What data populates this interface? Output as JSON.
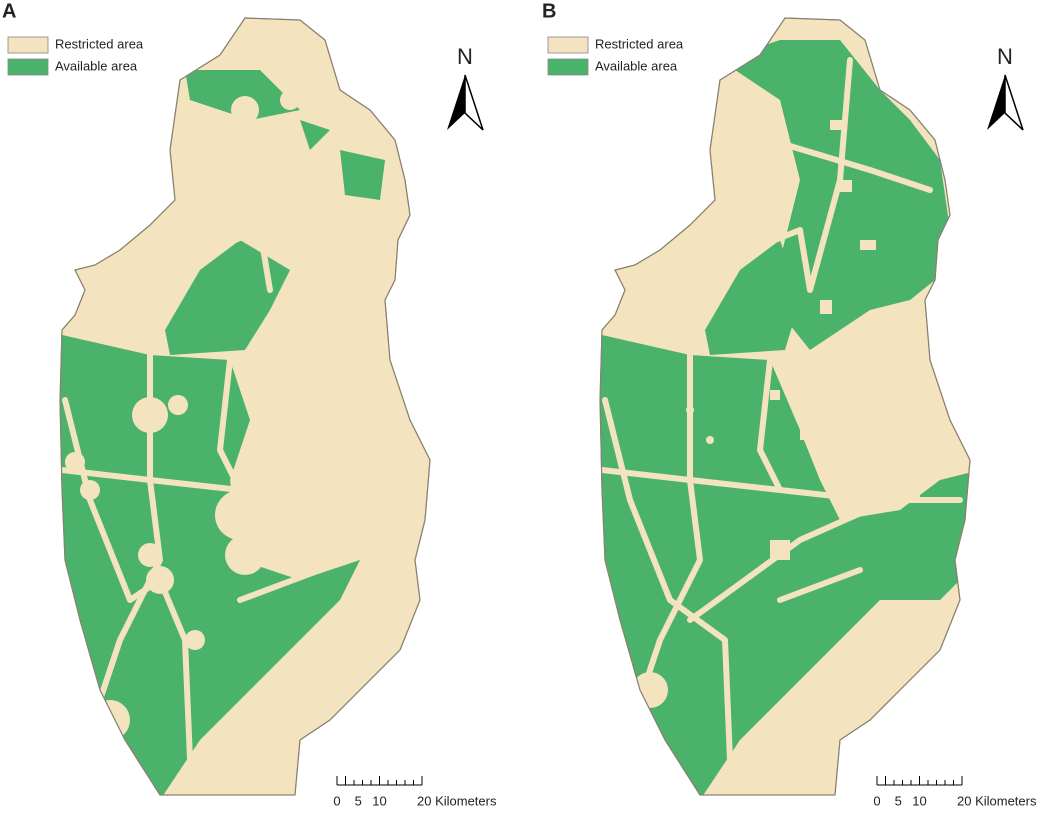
{
  "panels": [
    {
      "label": "A",
      "legend": [
        {
          "label": "Restricted area",
          "color": "#f3e3bf"
        },
        {
          "label": "Available area",
          "color": "#4bb26c"
        }
      ],
      "north": "N",
      "scale": [
        "0",
        "5",
        "10",
        "20 Kilometers"
      ]
    },
    {
      "label": "B",
      "legend": [
        {
          "label": "Restricted area",
          "color": "#f3e3bf"
        },
        {
          "label": "Available area",
          "color": "#4bb26c"
        }
      ],
      "north": "N",
      "scale": [
        "0",
        "5",
        "10",
        "20 Kilometers"
      ]
    }
  ]
}
